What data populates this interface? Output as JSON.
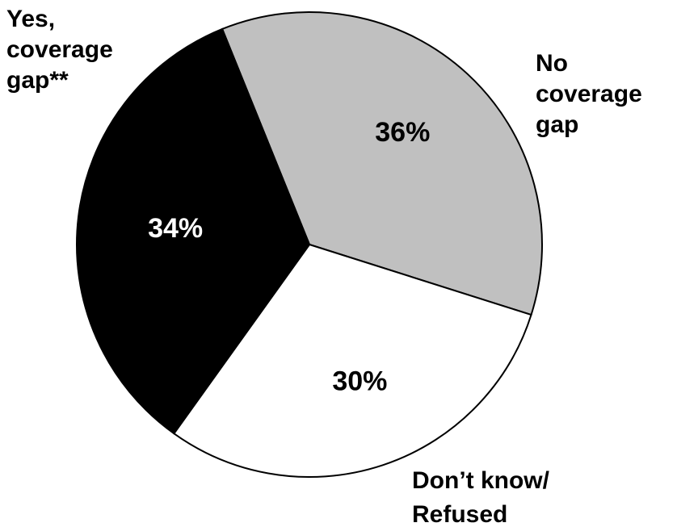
{
  "chart_data": {
    "type": "pie",
    "title": "",
    "slices": [
      {
        "label_lines": [
          "No",
          "coverage",
          "gap"
        ],
        "value": 36,
        "value_label": "36%",
        "color": "#c0c0c0",
        "value_text_color": "#000000"
      },
      {
        "label_lines": [
          "Don’t know/",
          "Refused"
        ],
        "value": 30,
        "value_label": "30%",
        "color": "#ffffff",
        "value_text_color": "#000000"
      },
      {
        "label_lines": [
          "Yes,",
          "coverage",
          "gap**"
        ],
        "value": 34,
        "value_label": "34%",
        "color": "#000000",
        "value_text_color": "#ffffff"
      }
    ]
  }
}
